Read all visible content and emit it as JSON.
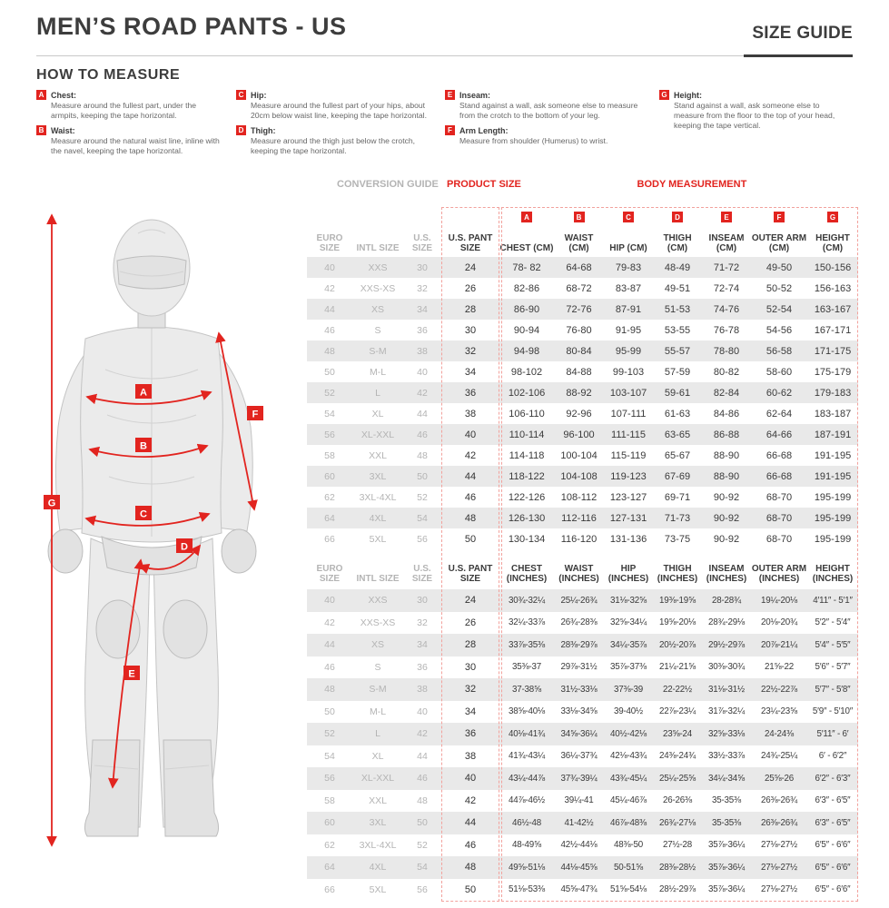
{
  "header": {
    "title": "MEN’S ROAD PANTS - US",
    "size_guide": "SIZE GUIDE"
  },
  "how_to_measure": {
    "heading": "HOW TO MEASURE",
    "columns": [
      [
        {
          "letter": "A",
          "label": "Chest:",
          "desc": "Measure around the fullest part, under the armpits, keeping the tape horizontal."
        },
        {
          "letter": "B",
          "label": "Waist:",
          "desc": "Measure around the natural waist line, inline with the navel, keeping the tape horizontal."
        }
      ],
      [
        {
          "letter": "C",
          "label": "Hip:",
          "desc": "Measure around the fullest part of your hips, about 20cm below waist line, keeping the tape horizontal."
        },
        {
          "letter": "D",
          "label": "Thigh:",
          "desc": "Measure around the thigh just below the crotch, keeping the tape horizontal."
        }
      ],
      [
        {
          "letter": "E",
          "label": "Inseam:",
          "desc": "Stand against a wall, ask someone else to measure from the crotch to the bottom of your leg."
        },
        {
          "letter": "F",
          "label": "Arm Length:",
          "desc": "Measure from shoulder (Humerus) to wrist."
        }
      ],
      [
        {
          "letter": "G",
          "label": "Height:",
          "desc": "Stand against a wall, ask someone else to measure from the floor to the top of your head, keeping the tape vertical."
        }
      ]
    ]
  },
  "figure": {
    "labels": [
      "A",
      "B",
      "C",
      "D",
      "E",
      "F",
      "G"
    ]
  },
  "table": {
    "group_headers": {
      "conversion": "CONVERSION GUIDE",
      "product": "PRODUCT SIZE",
      "body": "BODY MEASUREMENT"
    },
    "letters": [
      "A",
      "B",
      "C",
      "D",
      "E",
      "F",
      "G"
    ],
    "cm": {
      "columns": [
        "EURO SIZE",
        "INTL SIZE",
        "U.S. SIZE",
        "U.S. PANT SIZE",
        "CHEST (CM)",
        "WAIST (CM)",
        "HIP (CM)",
        "THIGH (CM)",
        "INSEAM (CM)",
        "OUTER ARM (CM)",
        "HEIGHT (CM)"
      ],
      "rows": [
        [
          "40",
          "XXS",
          "30",
          "24",
          "78- 82",
          "64-68",
          "79-83",
          "48-49",
          "71-72",
          "49-50",
          "150-156"
        ],
        [
          "42",
          "XXS-XS",
          "32",
          "26",
          "82-86",
          "68-72",
          "83-87",
          "49-51",
          "72-74",
          "50-52",
          "156-163"
        ],
        [
          "44",
          "XS",
          "34",
          "28",
          "86-90",
          "72-76",
          "87-91",
          "51-53",
          "74-76",
          "52-54",
          "163-167"
        ],
        [
          "46",
          "S",
          "36",
          "30",
          "90-94",
          "76-80",
          "91-95",
          "53-55",
          "76-78",
          "54-56",
          "167-171"
        ],
        [
          "48",
          "S-M",
          "38",
          "32",
          "94-98",
          "80-84",
          "95-99",
          "55-57",
          "78-80",
          "56-58",
          "171-175"
        ],
        [
          "50",
          "M-L",
          "40",
          "34",
          "98-102",
          "84-88",
          "99-103",
          "57-59",
          "80-82",
          "58-60",
          "175-179"
        ],
        [
          "52",
          "L",
          "42",
          "36",
          "102-106",
          "88-92",
          "103-107",
          "59-61",
          "82-84",
          "60-62",
          "179-183"
        ],
        [
          "54",
          "XL",
          "44",
          "38",
          "106-110",
          "92-96",
          "107-111",
          "61-63",
          "84-86",
          "62-64",
          "183-187"
        ],
        [
          "56",
          "XL-XXL",
          "46",
          "40",
          "110-114",
          "96-100",
          "111-115",
          "63-65",
          "86-88",
          "64-66",
          "187-191"
        ],
        [
          "58",
          "XXL",
          "48",
          "42",
          "114-118",
          "100-104",
          "115-119",
          "65-67",
          "88-90",
          "66-68",
          "191-195"
        ],
        [
          "60",
          "3XL",
          "50",
          "44",
          "118-122",
          "104-108",
          "119-123",
          "67-69",
          "88-90",
          "66-68",
          "191-195"
        ],
        [
          "62",
          "3XL-4XL",
          "52",
          "46",
          "122-126",
          "108-112",
          "123-127",
          "69-71",
          "90-92",
          "68-70",
          "195-199"
        ],
        [
          "64",
          "4XL",
          "54",
          "48",
          "126-130",
          "112-116",
          "127-131",
          "71-73",
          "90-92",
          "68-70",
          "195-199"
        ],
        [
          "66",
          "5XL",
          "56",
          "50",
          "130-134",
          "116-120",
          "131-136",
          "73-75",
          "90-92",
          "68-70",
          "195-199"
        ]
      ]
    },
    "inches": {
      "columns": [
        "EURO SIZE",
        "INTL SIZE",
        "U.S. SIZE",
        "U.S. PANT SIZE",
        "CHEST (INCHES)",
        "WAIST (INCHES)",
        "HIP (INCHES)",
        "THIGH (INCHES)",
        "INSEAM (INCHES)",
        "OUTER ARM (INCHES)",
        "HEIGHT (INCHES)"
      ],
      "rows": [
        [
          "40",
          "XXS",
          "30",
          "24",
          "30¾-32¼",
          "25¼-26¾",
          "31⅛-32⅝",
          "19⅜-19⅝",
          "28-28¾",
          "19¼-20⅛",
          "4′11″ - 5′1″"
        ],
        [
          "42",
          "XXS-XS",
          "32",
          "26",
          "32¼-33⅞",
          "26¾-28⅜",
          "32⅝-34¼",
          "19⅝-20⅛",
          "28¾-29⅛",
          "20⅛-20¾",
          "5′2″ - 5′4″"
        ],
        [
          "44",
          "XS",
          "34",
          "28",
          "33⅞-35⅜",
          "28⅜-29⅞",
          "34¼-35⅞",
          "20½-20⅞",
          "29½-29⅞",
          "20⅞-21¼",
          "5′4″ - 5′5″"
        ],
        [
          "46",
          "S",
          "36",
          "30",
          "35⅜-37",
          "29⅞-31½",
          "35⅞-37⅜",
          "21¼-21⅝",
          "30⅜-30¾",
          "21⅝-22",
          "5′6″ - 5′7″"
        ],
        [
          "48",
          "S-M",
          "38",
          "32",
          "37-38⅝",
          "31½-33⅛",
          "37⅜-39",
          "22-22½",
          "31⅛-31½",
          "22½-22⅞",
          "5′7″ - 5′8″"
        ],
        [
          "50",
          "M-L",
          "40",
          "34",
          "38⅝-40⅛",
          "33⅛-34⅝",
          "39-40½",
          "22⅞-23¼",
          "31⅞-32¼",
          "23¼-23⅝",
          "5′9″ - 5′10″"
        ],
        [
          "52",
          "L",
          "42",
          "36",
          "40⅛-41¾",
          "34⅝-36¼",
          "40½-42⅛",
          "23⅝-24",
          "32⅝-33⅛",
          "24-24⅜",
          "5′11″ - 6′"
        ],
        [
          "54",
          "XL",
          "44",
          "38",
          "41¾-43¼",
          "36¼-37¾",
          "42⅛-43¾",
          "24⅜-24¾",
          "33½-33⅞",
          "24¾-25¼",
          "6′ - 6′2″"
        ],
        [
          "56",
          "XL-XXL",
          "46",
          "40",
          "43¼-44⅞",
          "37¾-39¼",
          "43¾-45¼",
          "25¼-25⅝",
          "34¼-34⅝",
          "25⅝-26",
          "6′2″ - 6′3″"
        ],
        [
          "58",
          "XXL",
          "48",
          "42",
          "44⅞-46½",
          "39¼-41",
          "45¼-46⅞",
          "26-26⅜",
          "35-35⅜",
          "26⅜-26¾",
          "6′3″ - 6′5″"
        ],
        [
          "60",
          "3XL",
          "50",
          "44",
          "46½-48",
          "41-42½",
          "46⅞-48⅜",
          "26¾-27⅛",
          "35-35⅜",
          "26⅜-26¾",
          "6′3″ - 6′5″"
        ],
        [
          "62",
          "3XL-4XL",
          "52",
          "46",
          "48-49⅝",
          "42½-44⅛",
          "48⅜-50",
          "27½-28",
          "35⅞-36¼",
          "27⅛-27½",
          "6′5″ - 6′6″"
        ],
        [
          "64",
          "4XL",
          "54",
          "48",
          "49⅝-51⅛",
          "44⅛-45⅝",
          "50-51⅝",
          "28⅜-28½",
          "35⅞-36¼",
          "27⅛-27½",
          "6′5″ - 6′6″"
        ],
        [
          "66",
          "5XL",
          "56",
          "50",
          "51⅛-53⅜",
          "45⅝-47¾",
          "51⅝-54⅛",
          "28½-29⅞",
          "35⅞-36¼",
          "27⅛-27½",
          "6′5″ - 6′6″"
        ]
      ]
    }
  },
  "colors": {
    "accent_red": "#e2241f",
    "stripe_gray": "#e9e9e9",
    "muted_gray": "#b4b4b4",
    "ink": "#3a3a3a"
  }
}
